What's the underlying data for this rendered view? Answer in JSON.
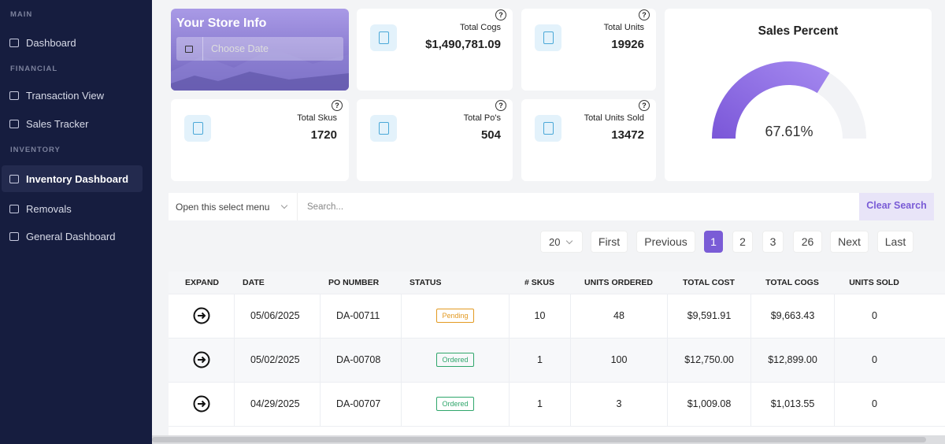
{
  "sidebar": {
    "sections": [
      {
        "heading": "MAIN",
        "items": [
          "Dashboard"
        ]
      },
      {
        "heading": "FINANCIAL",
        "items": [
          "Transaction View",
          "Sales Tracker"
        ]
      },
      {
        "heading": "INVENTORY",
        "items": [
          "Inventory Dashboard",
          "Removals",
          "General Dashboard"
        ]
      }
    ],
    "active": "Inventory Dashboard"
  },
  "store_info": {
    "title": "Your Store Info",
    "date_placeholder": "Choose Date"
  },
  "stats": [
    {
      "label": "Total Cogs",
      "value": "$1,490,781.09"
    },
    {
      "label": "Total Units",
      "value": "19926"
    },
    {
      "label": "Total Skus",
      "value": "1720"
    },
    {
      "label": "Total Po's",
      "value": "504"
    },
    {
      "label": "Total Units Sold",
      "value": "13472"
    }
  ],
  "gauge": {
    "title": "Sales Percent",
    "value": 67.61,
    "label": "67.61%"
  },
  "filter": {
    "select": "Open this select menu",
    "search_placeholder": "Search...",
    "button": "Clear Search"
  },
  "pagination": {
    "page_size": "20",
    "buttons": [
      "First",
      "Previous",
      "1",
      "2",
      "3",
      "26",
      "Next",
      "Last"
    ],
    "active": "1"
  },
  "table": {
    "columns": [
      "EXPAND",
      "DATE",
      "PO NUMBER",
      "STATUS",
      "# SKUS",
      "UNITS ORDERED",
      "TOTAL COST",
      "TOTAL COGS",
      "UNITS SOLD"
    ],
    "rows": [
      [
        "05/06/2025",
        "DA-00711",
        "Pending",
        "10",
        "48",
        "$9,591.91",
        "$9,663.43",
        "0"
      ],
      [
        "05/02/2025",
        "DA-00708",
        "Ordered",
        "1",
        "100",
        "$12,750.00",
        "$12,899.00",
        "0"
      ],
      [
        "04/29/2025",
        "DA-00707",
        "Ordered",
        "1",
        "3",
        "$1,009.08",
        "$1,013.55",
        "0"
      ]
    ]
  }
}
